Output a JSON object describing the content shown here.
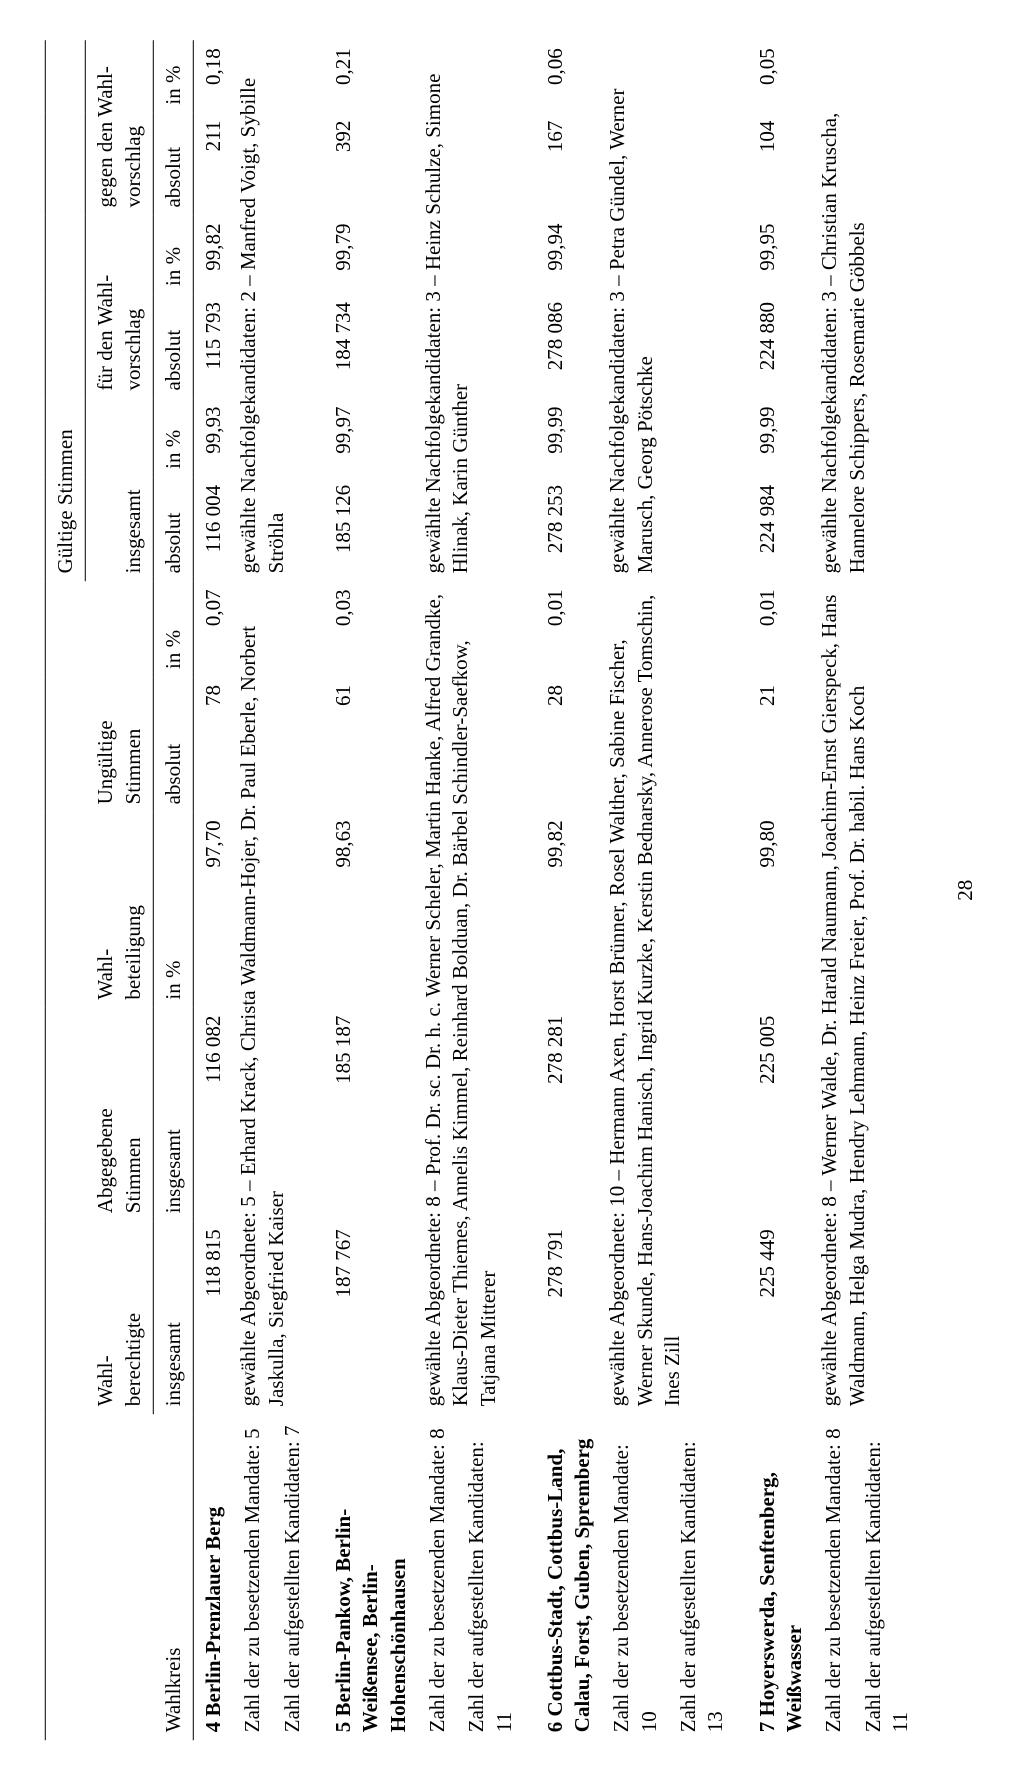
{
  "page_number": "28",
  "headers": {
    "wahlkreis": "Wahlkreis",
    "wahlberechtigte": "Wahl-\nberechtigte",
    "abgegebene": "Abgegebene\nStimmen",
    "wahlbeteiligung": "Wahl-\nbeteiligung",
    "ungueltige": "Ungültige\nStimmen",
    "gueltige": "Gültige Stimmen",
    "insgesamt_top": "insgesamt",
    "fuer": "für den Wahl-\nvorschlag",
    "gegen": "gegen den Wahl-\nvorschlag",
    "insgesamt": "insgesamt",
    "in_pct": "in %",
    "absolut": "absolut"
  },
  "row_labels": {
    "mandate": "Zahl der zu besetzenden Mandate:",
    "kandidaten": "Zahl der aufgestellten Kandidaten:",
    "gewaehlte_abg": "gewählte Abgeordnete:",
    "gewaehlte_nach": "gewählte Nachfolgekandidaten:"
  },
  "districts": [
    {
      "num": "4",
      "name": "Berlin-Prenzlauer Berg",
      "mandate": "5",
      "kandidaten": "7",
      "wahlberechtigte": "118 815",
      "abg_insgesamt": "116 082",
      "wahlbeteiligung": "97,70",
      "ung_abs": "78",
      "ung_pct": "0,07",
      "gueltig_abs": "116 004",
      "gueltig_pct": "99,93",
      "fuer_abs": "115 793",
      "fuer_pct": "99,82",
      "gegen_abs": "211",
      "gegen_pct": "0,18",
      "abg_count": "5",
      "abgeordnete": "Erhard Krack, Christa Waldmann-Hojer, Dr. Paul Eberle, Norbert Jaskulla, Siegfried Kaiser",
      "nach_count": "2",
      "nachfolge": "Manfred Voigt, Sybille Ströhla"
    },
    {
      "num": "5",
      "name": "Berlin-Pankow, Berlin-Weißensee, Berlin-Hohenschönhausen",
      "mandate": "8",
      "kandidaten": "11",
      "wahlberechtigte": "187 767",
      "abg_insgesamt": "185 187",
      "wahlbeteiligung": "98,63",
      "ung_abs": "61",
      "ung_pct": "0,03",
      "gueltig_abs": "185 126",
      "gueltig_pct": "99,97",
      "fuer_abs": "184 734",
      "fuer_pct": "99,79",
      "gegen_abs": "392",
      "gegen_pct": "0,21",
      "abg_count": "8",
      "abgeordnete": "Prof. Dr. sc. Dr. h. c. Werner Scheler, Martin Hanke, Alfred Grandke, Klaus-Dieter Thiemes, Annelis Kimmel, Reinhard Bolduan, Dr. Bärbel Schindler-Saefkow, Tatjana Mitterer",
      "nach_count": "3",
      "nachfolge": "Heinz Schulze, Simone Hlinak, Karin Günther"
    },
    {
      "num": "6",
      "name": "Cottbus-Stadt, Cottbus-Land, Calau, Forst, Guben, Spremberg",
      "mandate": "10",
      "kandidaten": "13",
      "wahlberechtigte": "278 791",
      "abg_insgesamt": "278 281",
      "wahlbeteiligung": "99,82",
      "ung_abs": "28",
      "ung_pct": "0,01",
      "gueltig_abs": "278 253",
      "gueltig_pct": "99,99",
      "fuer_abs": "278 086",
      "fuer_pct": "99,94",
      "gegen_abs": "167",
      "gegen_pct": "0,06",
      "abg_count": "10",
      "abgeordnete": "Hermann Axen, Horst Brünner, Rosel Walther, Sabine Fischer, Werner Skunde, Hans-Joachim Hanisch, Ingrid Kurzke, Kerstin Bednarsky, Annerose Tomschin, Ines Zill",
      "nach_count": "3",
      "nachfolge": "Petra Gündel, Werner Marusch, Georg Pötschke"
    },
    {
      "num": "7",
      "name": "Hoyerswerda, Senftenberg, Weißwasser",
      "mandate": "8",
      "kandidaten": "11",
      "wahlberechtigte": "225 449",
      "abg_insgesamt": "225 005",
      "wahlbeteiligung": "99,80",
      "ung_abs": "21",
      "ung_pct": "0,01",
      "gueltig_abs": "224 984",
      "gueltig_pct": "99,99",
      "fuer_abs": "224 880",
      "fuer_pct": "99,95",
      "gegen_abs": "104",
      "gegen_pct": "0,05",
      "abg_count": "8",
      "abgeordnete": "Werner Walde, Dr. Harald Naumann, Joachim-Ernst Gierspeck, Hans Waldmann, Helga Mudra, Hendry Lehmann, Heinz Freier, Prof. Dr. habil. Hans Koch",
      "nach_count": "3",
      "nachfolge": "Christian Kruscha, Hannelore Schippers, Rosemarie Göbbels"
    }
  ]
}
